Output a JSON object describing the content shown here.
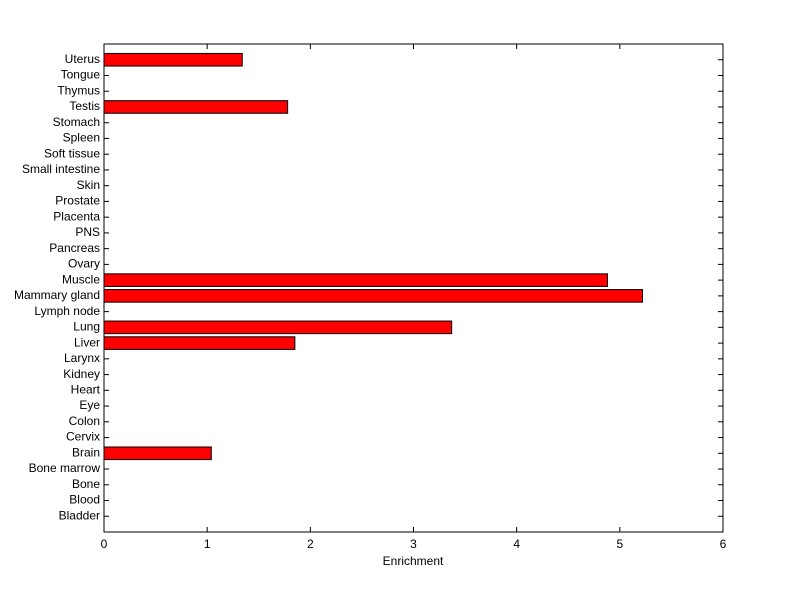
{
  "chart_data": {
    "type": "hbar",
    "categories": [
      "Bladder",
      "Blood",
      "Bone",
      "Bone marrow",
      "Brain",
      "Cervix",
      "Colon",
      "Eye",
      "Heart",
      "Kidney",
      "Larynx",
      "Liver",
      "Lung",
      "Lymph node",
      "Mammary gland",
      "Muscle",
      "Ovary",
      "Pancreas",
      "PNS",
      "Placenta",
      "Prostate",
      "Skin",
      "Small intestine",
      "Soft tissue",
      "Spleen",
      "Stomach",
      "Testis",
      "Thymus",
      "Tongue",
      "Uterus"
    ],
    "values": [
      0,
      0,
      0,
      0,
      1.04,
      0,
      0,
      0,
      0,
      0,
      0,
      1.85,
      3.37,
      0,
      5.22,
      4.88,
      0,
      0,
      0,
      0,
      0,
      0,
      0,
      0,
      0,
      0,
      1.78,
      0,
      0,
      1.34
    ],
    "color": "#ff0000",
    "x_label": "Enrichment",
    "xlim": [
      0,
      6
    ],
    "xticks": [
      0,
      1,
      2,
      3,
      4,
      5,
      6
    ]
  }
}
